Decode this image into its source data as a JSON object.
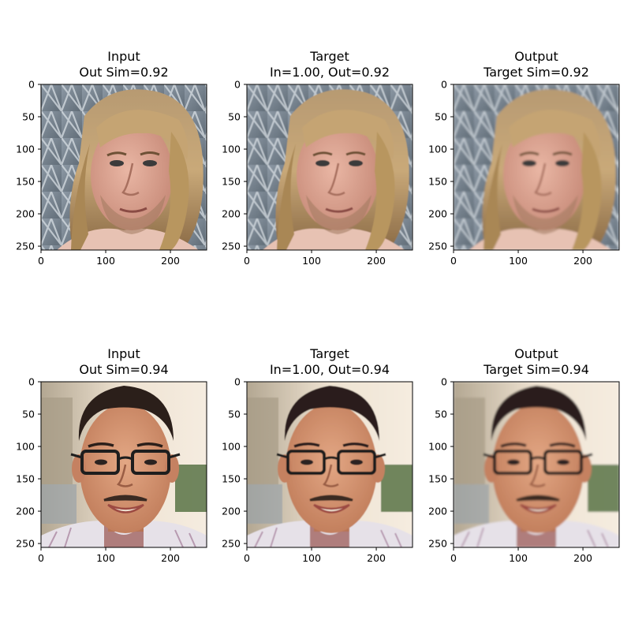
{
  "figure": {
    "background": "#ffffff"
  },
  "chart_data": [
    {
      "type": "image",
      "row": 0,
      "col": 0,
      "title_line1": "Input",
      "title_line2": "Out Sim=0.92",
      "subject": "face-long-blond-hair",
      "variant": "input",
      "xlim": [
        0,
        256
      ],
      "ylim": [
        256,
        0
      ],
      "xticks": [
        0,
        100,
        200
      ],
      "yticks": [
        0,
        50,
        100,
        150,
        200,
        250
      ]
    },
    {
      "type": "image",
      "row": 0,
      "col": 1,
      "title_line1": "Target",
      "title_line2": "In=1.00, Out=0.92",
      "subject": "face-long-blond-hair",
      "variant": "target",
      "xlim": [
        0,
        256
      ],
      "ylim": [
        256,
        0
      ],
      "xticks": [
        0,
        100,
        200
      ],
      "yticks": [
        0,
        50,
        100,
        150,
        200,
        250
      ]
    },
    {
      "type": "image",
      "row": 0,
      "col": 2,
      "title_line1": "Output",
      "title_line2": "Target Sim=0.92",
      "subject": "face-long-blond-hair",
      "variant": "output",
      "xlim": [
        0,
        256
      ],
      "ylim": [
        256,
        0
      ],
      "xticks": [
        0,
        100,
        200
      ],
      "yticks": [
        0,
        50,
        100,
        150,
        200,
        250
      ]
    },
    {
      "type": "image",
      "row": 1,
      "col": 0,
      "title_line1": "Input",
      "title_line2": "Out Sim=0.94",
      "subject": "face-glasses-smiling",
      "variant": "input",
      "xlim": [
        0,
        256
      ],
      "ylim": [
        256,
        0
      ],
      "xticks": [
        0,
        100,
        200
      ],
      "yticks": [
        0,
        50,
        100,
        150,
        200,
        250
      ]
    },
    {
      "type": "image",
      "row": 1,
      "col": 1,
      "title_line1": "Target",
      "title_line2": "In=1.00, Out=0.94",
      "subject": "face-glasses-smiling",
      "variant": "target",
      "xlim": [
        0,
        256
      ],
      "ylim": [
        256,
        0
      ],
      "xticks": [
        0,
        100,
        200
      ],
      "yticks": [
        0,
        50,
        100,
        150,
        200,
        250
      ]
    },
    {
      "type": "image",
      "row": 1,
      "col": 2,
      "title_line1": "Output",
      "title_line2": "Target Sim=0.94",
      "subject": "face-glasses-smiling",
      "variant": "output",
      "xlim": [
        0,
        256
      ],
      "ylim": [
        256,
        0
      ],
      "xticks": [
        0,
        100,
        200
      ],
      "yticks": [
        0,
        50,
        100,
        150,
        200,
        250
      ]
    }
  ]
}
